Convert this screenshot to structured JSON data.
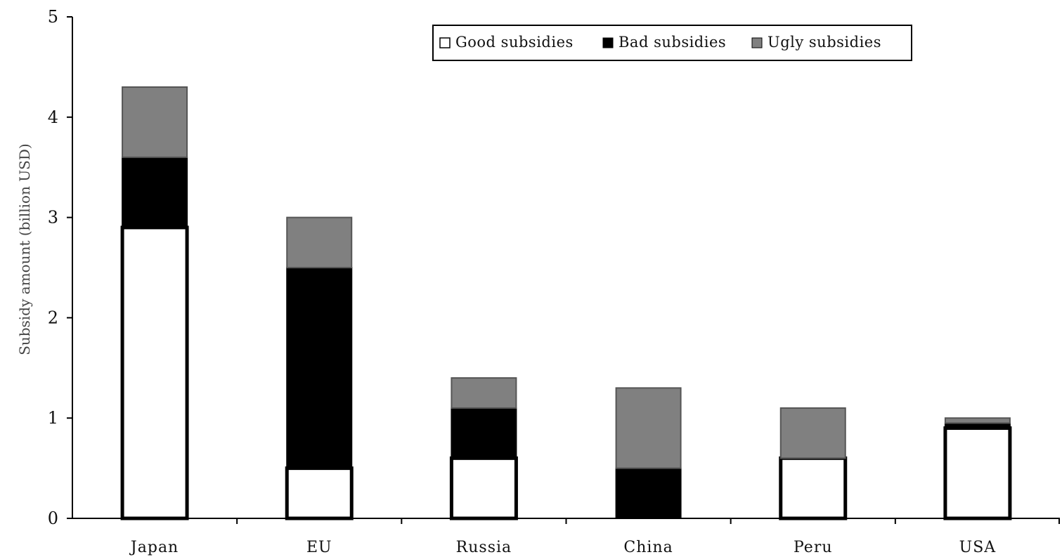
{
  "chart_data": {
    "type": "bar",
    "stacked": true,
    "categories": [
      "Japan",
      "EU",
      "Russia",
      "China",
      "Peru",
      "USA"
    ],
    "series": [
      {
        "name": "Good subsidies",
        "values": [
          2.9,
          0.5,
          0.6,
          0.0,
          0.6,
          0.9
        ],
        "color": "#ffffff"
      },
      {
        "name": "Bad subsidies",
        "values": [
          0.7,
          2.0,
          0.5,
          0.5,
          0.0,
          0.05
        ],
        "color": "#000000"
      },
      {
        "name": "Ugly subsidies",
        "values": [
          0.7,
          0.5,
          0.3,
          0.8,
          0.5,
          0.05
        ],
        "color": "#808080"
      }
    ],
    "title": "",
    "xlabel": "",
    "ylabel": "Subsidy amount (billion USD)",
    "ylim": [
      0,
      5
    ],
    "yticks": [
      "0",
      "1",
      "2",
      "3",
      "4",
      "5"
    ],
    "grid": false,
    "legend_position": "top-center"
  }
}
